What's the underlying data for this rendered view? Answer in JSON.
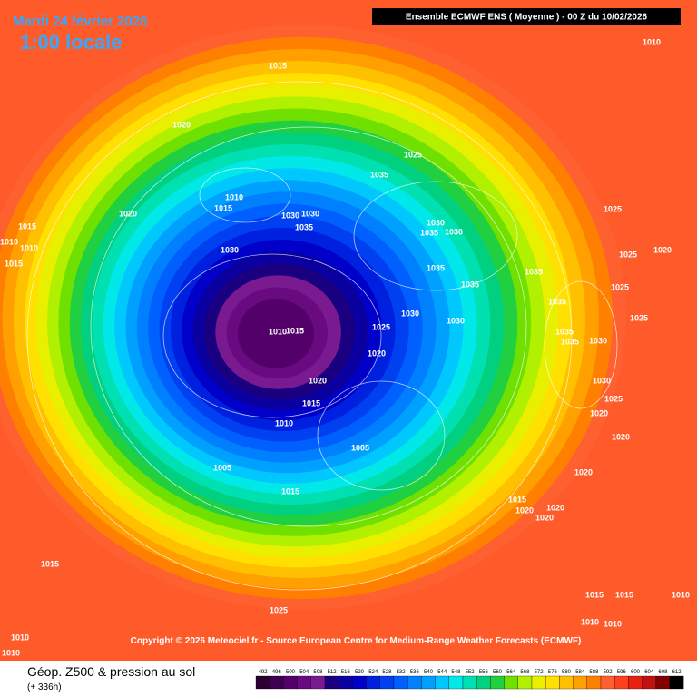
{
  "header": {
    "date": "Mardi 24 février 2026",
    "time": "1:00 locale",
    "model": "Ensemble ECMWF ENS  ( Moyenne )  -  00 Z du 10/02/2026"
  },
  "copyright": "Copyright © 2026 Meteociel.fr - Source European Centre for Medium-Range Weather Forecasts (ECMWF)",
  "legend": {
    "title": "Géop. Z500 & pression au sol",
    "lead": "(+ 336h)"
  },
  "colorbar": {
    "values": [
      492,
      496,
      500,
      504,
      508,
      512,
      516,
      520,
      524,
      528,
      532,
      536,
      540,
      544,
      548,
      552,
      556,
      560,
      564,
      568,
      572,
      576,
      580,
      584,
      588,
      592,
      596,
      600,
      604,
      608,
      612
    ],
    "colors": [
      "#2b0030",
      "#3d0050",
      "#54006a",
      "#6a0a80",
      "#7a1a90",
      "#1a0080",
      "#0a00a0",
      "#0000c8",
      "#0020e0",
      "#0040f0",
      "#0060ff",
      "#0080ff",
      "#00a0ff",
      "#00c8ff",
      "#00e8e8",
      "#00e0b0",
      "#00d080",
      "#20d040",
      "#70e000",
      "#b0f000",
      "#e8f000",
      "#ffe000",
      "#ffc000",
      "#ffa000",
      "#ff8000",
      "#ff6030",
      "#ff4020",
      "#e82010",
      "#c01010",
      "#800000",
      "#000000"
    ]
  },
  "isobars": [
    1010,
    1015,
    1020,
    1025,
    1035,
    1010,
    1015,
    1020,
    1030,
    1030,
    1035,
    1030,
    1030,
    1035,
    1030,
    1035,
    1035,
    1035,
    1025,
    1025,
    1020,
    1025,
    1015,
    1010,
    1010,
    1015,
    1030,
    1030,
    1035,
    1025,
    1015,
    1010,
    1020,
    1035,
    1035,
    1030,
    1025,
    1020,
    1015,
    1010,
    1030,
    1025,
    1020,
    1020,
    1005,
    1005,
    1015,
    1020,
    1015,
    1020,
    1020,
    1020,
    1015,
    1025,
    1015,
    1015,
    1010,
    1010,
    1010,
    1010,
    1010
  ]
}
